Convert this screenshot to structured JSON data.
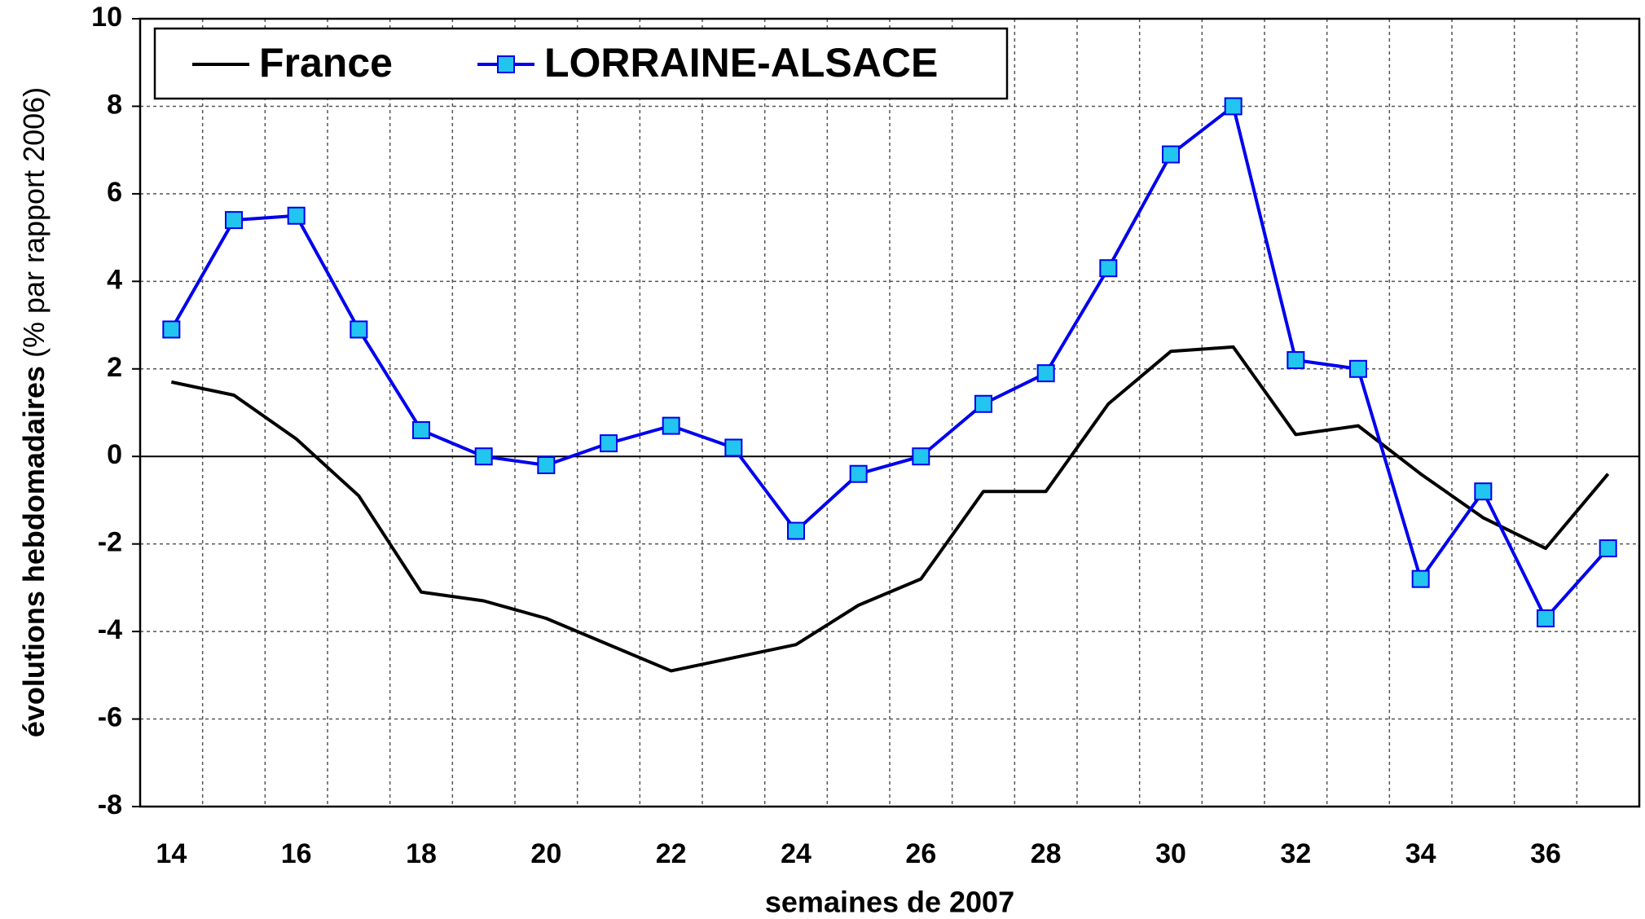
{
  "chart_data": {
    "type": "line",
    "xlabel": "semaines de 2007",
    "ylabel": "évolutions hebdomadaires",
    "ylabel_note": "(% par rapport 2006)",
    "categories": [
      14,
      null,
      16,
      null,
      18,
      null,
      20,
      null,
      22,
      null,
      24,
      null,
      26,
      null,
      28,
      null,
      30,
      null,
      32,
      null,
      34,
      null,
      36,
      null
    ],
    "series": [
      {
        "name": "France",
        "color": "#000000",
        "marker": false,
        "values": [
          1.7,
          1.4,
          0.4,
          -0.9,
          -3.1,
          -3.3,
          -3.7,
          -4.3,
          -4.9,
          -4.6,
          -4.3,
          -3.4,
          -2.8,
          -0.8,
          -0.8,
          1.2,
          2.4,
          2.5,
          0.5,
          0.7,
          -0.4,
          -1.4,
          -2.1,
          -0.4
        ]
      },
      {
        "name": "LORRAINE-ALSACE",
        "color": "#0000ee",
        "marker": true,
        "marker_color": "#22c4f0",
        "values": [
          2.9,
          5.4,
          5.5,
          2.9,
          0.6,
          0.0,
          -0.2,
          0.3,
          0.7,
          0.2,
          -1.7,
          -0.4,
          0.0,
          1.2,
          1.9,
          4.3,
          6.9,
          8.0,
          2.2,
          2.0,
          -2.8,
          -0.8,
          -3.7,
          -2.1
        ]
      }
    ],
    "ylim": [
      -8,
      10
    ],
    "yticks": [
      -8,
      -6,
      -4,
      -2,
      0,
      2,
      4,
      6,
      8,
      10
    ],
    "grid": true
  }
}
